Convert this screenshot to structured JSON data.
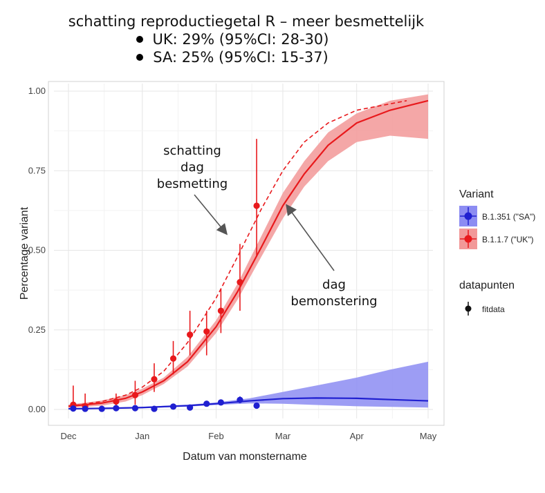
{
  "header": {
    "title": "schatting reproductiegetal R – meer besmettelijk",
    "bullets": [
      "UK: 29% (95%CI: 28-30)",
      "SA: 25% (95%CI: 15-37)"
    ]
  },
  "annotations": {
    "infection": [
      "schatting",
      "dag",
      "besmetting"
    ],
    "sampling": [
      "dag",
      "bemonstering"
    ]
  },
  "legend": {
    "variant_title": "Variant",
    "variant_items": [
      "B.1.351 (\"SA\")",
      "B.1.1.7 (\"UK\")"
    ],
    "data_title": "datapunten",
    "data_items": [
      "fitdata"
    ]
  },
  "chart_data": {
    "type": "line",
    "xlabel": "Datum van monstername",
    "ylabel": "Percentage variant",
    "xlim": [
      "2020-12-01",
      "2021-05-01"
    ],
    "ylim": [
      0,
      1
    ],
    "x_ticks": [
      "Dec",
      "Jan",
      "Feb",
      "Mar",
      "Apr",
      "May"
    ],
    "y_ticks": [
      "0.00",
      "0.25",
      "0.50",
      "0.75",
      "1.00"
    ],
    "grid": true,
    "legend_position": "right",
    "colors": {
      "SA": "#1f1fd0",
      "UK": "#e8191c",
      "SA_band": "#8c8cf2",
      "UK_band": "#f29898"
    },
    "series": [
      {
        "name": "B.1.1.7 (\"UK\")",
        "fit": [
          [
            "2020-12-01",
            0.01
          ],
          [
            "2020-12-15",
            0.02
          ],
          [
            "2020-12-25",
            0.035
          ],
          [
            "2021-01-01",
            0.055
          ],
          [
            "2021-01-10",
            0.09
          ],
          [
            "2021-01-20",
            0.15
          ],
          [
            "2021-02-01",
            0.26
          ],
          [
            "2021-02-10",
            0.37
          ],
          [
            "2021-02-20",
            0.51
          ],
          [
            "2021-03-01",
            0.64
          ],
          [
            "2021-03-10",
            0.74
          ],
          [
            "2021-03-20",
            0.83
          ],
          [
            "2021-04-01",
            0.9
          ],
          [
            "2021-04-15",
            0.94
          ],
          [
            "2021-05-01",
            0.97
          ]
        ],
        "band_lower": [
          [
            "2020-12-01",
            0.005
          ],
          [
            "2020-12-15",
            0.012
          ],
          [
            "2020-12-25",
            0.025
          ],
          [
            "2021-01-01",
            0.045
          ],
          [
            "2021-01-10",
            0.08
          ],
          [
            "2021-01-20",
            0.135
          ],
          [
            "2021-02-01",
            0.24
          ],
          [
            "2021-02-10",
            0.345
          ],
          [
            "2021-02-20",
            0.48
          ],
          [
            "2021-03-01",
            0.6
          ],
          [
            "2021-03-10",
            0.7
          ],
          [
            "2021-03-20",
            0.78
          ],
          [
            "2021-04-01",
            0.84
          ],
          [
            "2021-04-15",
            0.86
          ],
          [
            "2021-05-01",
            0.85
          ]
        ],
        "band_upper": [
          [
            "2020-12-01",
            0.015
          ],
          [
            "2020-12-15",
            0.028
          ],
          [
            "2020-12-25",
            0.045
          ],
          [
            "2021-01-01",
            0.065
          ],
          [
            "2021-01-10",
            0.1
          ],
          [
            "2021-01-20",
            0.165
          ],
          [
            "2021-02-01",
            0.28
          ],
          [
            "2021-02-10",
            0.395
          ],
          [
            "2021-02-20",
            0.545
          ],
          [
            "2021-03-01",
            0.68
          ],
          [
            "2021-03-10",
            0.78
          ],
          [
            "2021-03-20",
            0.87
          ],
          [
            "2021-04-01",
            0.93
          ],
          [
            "2021-04-15",
            0.97
          ],
          [
            "2021-05-01",
            0.99
          ]
        ],
        "points": [
          {
            "x": "2020-12-03",
            "y": 0.015,
            "lo": 0.0,
            "hi": 0.075
          },
          {
            "x": "2020-12-08",
            "y": 0.01,
            "lo": 0.0,
            "hi": 0.05
          },
          {
            "x": "2020-12-21",
            "y": 0.025,
            "lo": 0.005,
            "hi": 0.05
          },
          {
            "x": "2020-12-29",
            "y": 0.045,
            "lo": 0.015,
            "hi": 0.09
          },
          {
            "x": "2021-01-06",
            "y": 0.095,
            "lo": 0.055,
            "hi": 0.145
          },
          {
            "x": "2021-01-14",
            "y": 0.16,
            "lo": 0.11,
            "hi": 0.215
          },
          {
            "x": "2021-01-21",
            "y": 0.235,
            "lo": 0.17,
            "hi": 0.31
          },
          {
            "x": "2021-01-28",
            "y": 0.245,
            "lo": 0.17,
            "hi": 0.31
          },
          {
            "x": "2021-02-03",
            "y": 0.31,
            "lo": 0.24,
            "hi": 0.38
          },
          {
            "x": "2021-02-11",
            "y": 0.4,
            "lo": 0.31,
            "hi": 0.52
          },
          {
            "x": "2021-02-18",
            "y": 0.64,
            "lo": 0.48,
            "hi": 0.85
          }
        ]
      },
      {
        "name": "B.1.351 (\"SA\")",
        "fit": [
          [
            "2020-12-01",
            0.002
          ],
          [
            "2020-12-20",
            0.004
          ],
          [
            "2021-01-01",
            0.006
          ],
          [
            "2021-01-20",
            0.012
          ],
          [
            "2021-02-01",
            0.018
          ],
          [
            "2021-02-15",
            0.027
          ],
          [
            "2021-03-01",
            0.034
          ],
          [
            "2021-03-15",
            0.036
          ],
          [
            "2021-04-01",
            0.035
          ],
          [
            "2021-04-15",
            0.031
          ],
          [
            "2021-05-01",
            0.027
          ]
        ],
        "band_lower": [
          [
            "2020-12-01",
            0.0
          ],
          [
            "2020-12-20",
            0.002
          ],
          [
            "2021-01-01",
            0.004
          ],
          [
            "2021-01-20",
            0.009
          ],
          [
            "2021-02-01",
            0.014
          ],
          [
            "2021-02-15",
            0.019
          ],
          [
            "2021-03-01",
            0.018
          ],
          [
            "2021-03-15",
            0.014
          ],
          [
            "2021-04-01",
            0.01
          ],
          [
            "2021-04-15",
            0.008
          ],
          [
            "2021-05-01",
            0.006
          ]
        ],
        "band_upper": [
          [
            "2020-12-01",
            0.004
          ],
          [
            "2020-12-20",
            0.006
          ],
          [
            "2021-01-01",
            0.008
          ],
          [
            "2021-01-20",
            0.015
          ],
          [
            "2021-02-01",
            0.022
          ],
          [
            "2021-02-15",
            0.035
          ],
          [
            "2021-03-01",
            0.055
          ],
          [
            "2021-03-15",
            0.075
          ],
          [
            "2021-04-01",
            0.1
          ],
          [
            "2021-04-15",
            0.125
          ],
          [
            "2021-05-01",
            0.15
          ]
        ],
        "points": [
          {
            "x": "2020-12-03",
            "y": 0.003,
            "lo": 0.0,
            "hi": 0.008
          },
          {
            "x": "2020-12-08",
            "y": 0.002,
            "lo": 0.0,
            "hi": 0.006
          },
          {
            "x": "2020-12-15",
            "y": 0.002,
            "lo": 0.0,
            "hi": 0.006
          },
          {
            "x": "2020-12-21",
            "y": 0.004,
            "lo": 0.0,
            "hi": 0.009
          },
          {
            "x": "2020-12-29",
            "y": 0.004,
            "lo": 0.0,
            "hi": 0.009
          },
          {
            "x": "2021-01-06",
            "y": 0.002,
            "lo": 0.0,
            "hi": 0.006
          },
          {
            "x": "2021-01-14",
            "y": 0.009,
            "lo": 0.004,
            "hi": 0.015
          },
          {
            "x": "2021-01-21",
            "y": 0.006,
            "lo": 0.002,
            "hi": 0.011
          },
          {
            "x": "2021-01-28",
            "y": 0.018,
            "lo": 0.01,
            "hi": 0.026
          },
          {
            "x": "2021-02-03",
            "y": 0.022,
            "lo": 0.014,
            "hi": 0.031
          },
          {
            "x": "2021-02-11",
            "y": 0.03,
            "lo": 0.02,
            "hi": 0.041
          },
          {
            "x": "2021-02-18",
            "y": 0.012,
            "lo": 0.006,
            "hi": 0.02
          }
        ]
      },
      {
        "name": "schatting dag besmetting",
        "style": "dashed",
        "fit": [
          [
            "2020-12-01",
            0.01
          ],
          [
            "2020-12-15",
            0.025
          ],
          [
            "2020-12-25",
            0.045
          ],
          [
            "2021-01-01",
            0.07
          ],
          [
            "2021-01-10",
            0.12
          ],
          [
            "2021-01-20",
            0.21
          ],
          [
            "2021-02-01",
            0.35
          ],
          [
            "2021-02-10",
            0.48
          ],
          [
            "2021-02-20",
            0.63
          ],
          [
            "2021-03-01",
            0.75
          ],
          [
            "2021-03-10",
            0.84
          ],
          [
            "2021-03-20",
            0.9
          ],
          [
            "2021-04-01",
            0.94
          ],
          [
            "2021-04-15",
            0.96
          ],
          [
            "2021-04-22",
            0.97
          ]
        ]
      }
    ]
  }
}
